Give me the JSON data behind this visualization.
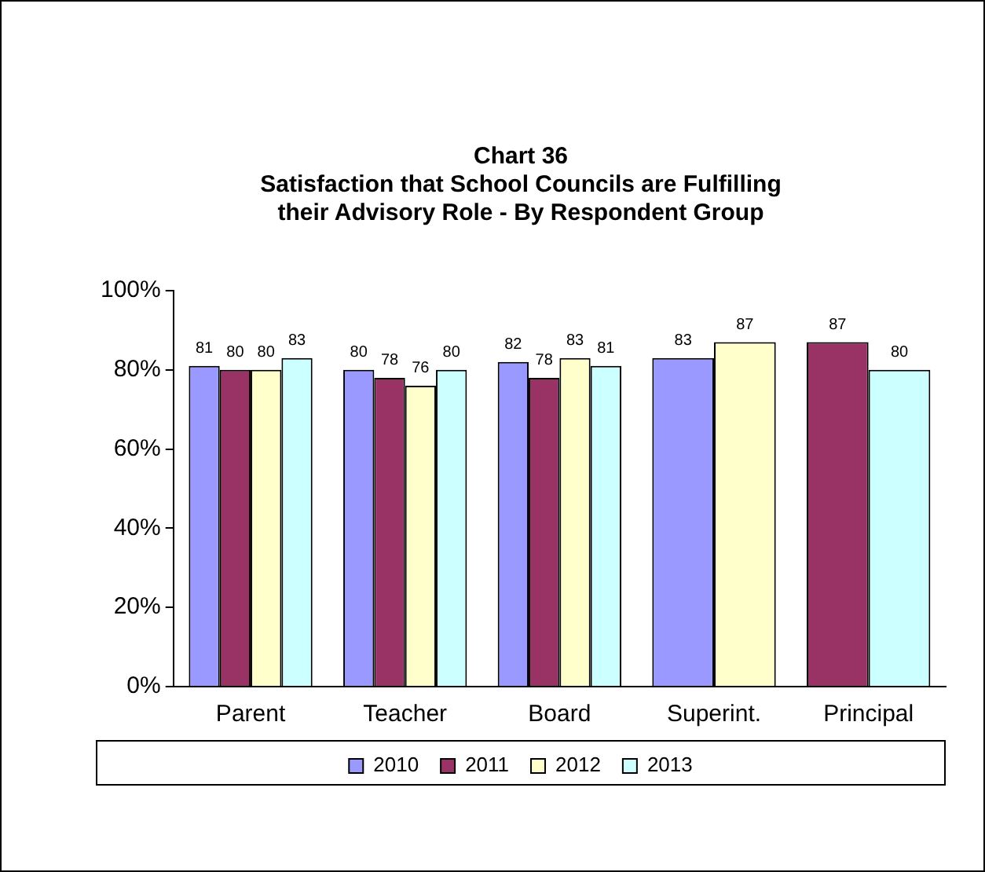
{
  "chart_data": {
    "type": "bar",
    "title": "Chart 36",
    "subtitle": "Satisfaction that School Councils are Fulfilling\ntheir Advisory Role - By Respondent Group",
    "categories": [
      "Parent",
      "Teacher",
      "Board",
      "Superint.",
      "Principal"
    ],
    "series": [
      {
        "name": "2010",
        "color": "#9999ff",
        "values": [
          81,
          80,
          82,
          83,
          null
        ]
      },
      {
        "name": "2011",
        "color": "#993366",
        "values": [
          80,
          78,
          78,
          null,
          87
        ]
      },
      {
        "name": "2012",
        "color": "#ffffcc",
        "values": [
          80,
          76,
          83,
          87,
          null
        ]
      },
      {
        "name": "2013",
        "color": "#ccffff",
        "values": [
          83,
          80,
          81,
          null,
          80
        ]
      }
    ],
    "ylim": [
      0,
      100
    ],
    "yticks": [
      {
        "value": 0,
        "label": "0%"
      },
      {
        "value": 20,
        "label": "20%"
      },
      {
        "value": 40,
        "label": "40%"
      },
      {
        "value": 60,
        "label": "60%"
      },
      {
        "value": 80,
        "label": "80%"
      },
      {
        "value": 100,
        "label": "100%"
      }
    ],
    "grid": false,
    "legend": "bottom",
    "data_labels": true
  }
}
